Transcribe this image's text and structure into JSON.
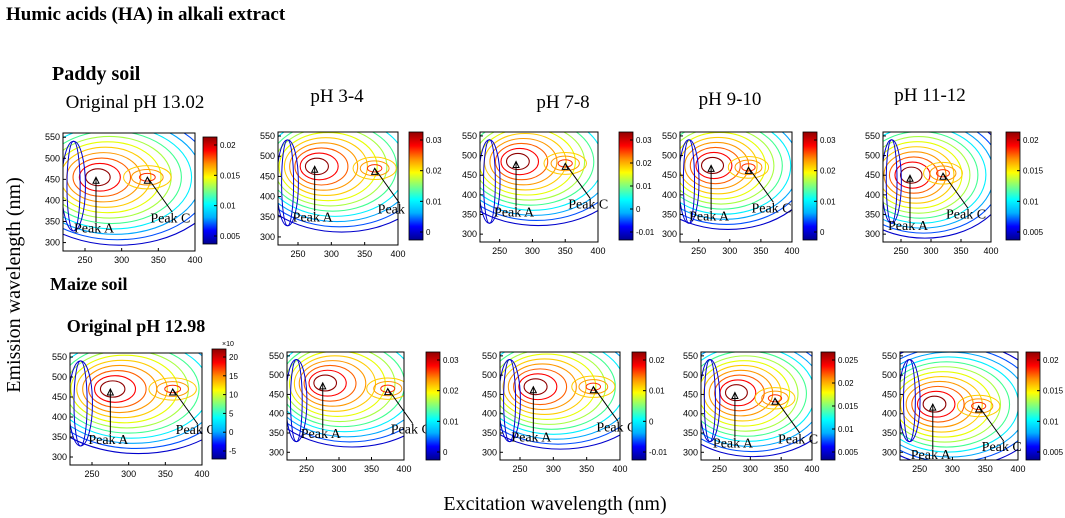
{
  "title": "Humic acids (HA) in alkali extract",
  "axis_labels": {
    "y": "Emission wavelength (nm)",
    "x": "Excitation wavelength (nm)"
  },
  "row_labels": {
    "paddy": "Paddy soil",
    "maize": "Maize soil"
  },
  "colormap": [
    "#00008f",
    "#0000ff",
    "#00b0ff",
    "#00ffff",
    "#7fff7f",
    "#ffff00",
    "#ff9000",
    "#ff0000",
    "#8f0000"
  ],
  "chart_data": [
    {
      "type": "heatmap",
      "soil": "Paddy soil",
      "title": "Original pH 13.02",
      "title_bold": false,
      "x_ticks": [
        250,
        300,
        350,
        400
      ],
      "y_ticks": [
        300,
        350,
        400,
        450,
        500,
        550
      ],
      "xlim": [
        220,
        400
      ],
      "ylim": [
        280,
        560
      ],
      "colorbar_ticks": [
        "0.02",
        "0.015",
        "0.01",
        "0.005"
      ],
      "colorbar_exponent": "",
      "peaks": [
        {
          "label": "Peak A",
          "ex": 265,
          "em": 455
        },
        {
          "label": "Peak C",
          "ex": 335,
          "em": 455
        }
      ]
    },
    {
      "type": "heatmap",
      "soil": "Paddy soil",
      "title": "pH 3-4",
      "title_bold": false,
      "x_ticks": [
        250,
        300,
        350,
        400
      ],
      "y_ticks": [
        300,
        350,
        400,
        450,
        500,
        550
      ],
      "xlim": [
        220,
        400
      ],
      "ylim": [
        280,
        560
      ],
      "colorbar_ticks": [
        "0.03",
        "0.02",
        "0.01",
        "0"
      ],
      "colorbar_exponent": "",
      "peaks": [
        {
          "label": "Peak A",
          "ex": 275,
          "em": 475
        },
        {
          "label": "Peak C",
          "ex": 365,
          "em": 470
        }
      ]
    },
    {
      "type": "heatmap",
      "soil": "Paddy soil",
      "title": "pH 7-8",
      "title_bold": false,
      "x_ticks": [
        250,
        300,
        350,
        400
      ],
      "y_ticks": [
        300,
        350,
        400,
        450,
        500,
        550
      ],
      "xlim": [
        220,
        400
      ],
      "ylim": [
        280,
        560
      ],
      "colorbar_ticks": [
        "0.03",
        "0.02",
        "0.01",
        "0",
        "-0.01"
      ],
      "colorbar_exponent": "",
      "peaks": [
        {
          "label": "Peak A",
          "ex": 275,
          "em": 485
        },
        {
          "label": "Peak C",
          "ex": 350,
          "em": 480
        }
      ]
    },
    {
      "type": "heatmap",
      "soil": "Paddy soil",
      "title": "pH 9-10",
      "title_bold": false,
      "x_ticks": [
        250,
        300,
        350,
        400
      ],
      "y_ticks": [
        300,
        350,
        400,
        450,
        500,
        550
      ],
      "xlim": [
        220,
        400
      ],
      "ylim": [
        280,
        560
      ],
      "colorbar_ticks": [
        "0.03",
        "0.02",
        "0.01",
        "0"
      ],
      "colorbar_exponent": "",
      "peaks": [
        {
          "label": "Peak A",
          "ex": 270,
          "em": 475
        },
        {
          "label": "Peak C",
          "ex": 330,
          "em": 470
        }
      ]
    },
    {
      "type": "heatmap",
      "soil": "Paddy soil",
      "title": "pH 11-12",
      "title_bold": false,
      "x_ticks": [
        250,
        300,
        350,
        400
      ],
      "y_ticks": [
        300,
        350,
        400,
        450,
        500,
        550
      ],
      "xlim": [
        220,
        400
      ],
      "ylim": [
        280,
        560
      ],
      "colorbar_ticks": [
        "0.02",
        "0.015",
        "0.01",
        "0.005"
      ],
      "colorbar_exponent": "",
      "peaks": [
        {
          "label": "Peak A",
          "ex": 265,
          "em": 450
        },
        {
          "label": "Peak C",
          "ex": 320,
          "em": 455
        }
      ]
    },
    {
      "type": "heatmap",
      "soil": "Maize soil",
      "title": "Original pH 12.98",
      "title_bold": true,
      "x_ticks": [
        250,
        300,
        350,
        400
      ],
      "y_ticks": [
        300,
        350,
        400,
        450,
        500,
        550
      ],
      "xlim": [
        220,
        400
      ],
      "ylim": [
        280,
        560
      ],
      "colorbar_ticks": [
        "20",
        "15",
        "10",
        "5",
        "0",
        "-5"
      ],
      "colorbar_exponent": "×10",
      "peaks": [
        {
          "label": "Peak A",
          "ex": 275,
          "em": 470
        },
        {
          "label": "Peak C",
          "ex": 360,
          "em": 470
        }
      ]
    },
    {
      "type": "heatmap",
      "soil": "Maize soil",
      "title": "",
      "title_bold": false,
      "x_ticks": [
        250,
        300,
        350,
        400
      ],
      "y_ticks": [
        300,
        350,
        400,
        450,
        500,
        550
      ],
      "xlim": [
        220,
        400
      ],
      "ylim": [
        280,
        560
      ],
      "colorbar_ticks": [
        "0.03",
        "0.02",
        "0.01",
        "0"
      ],
      "colorbar_exponent": "",
      "peaks": [
        {
          "label": "Peak A",
          "ex": 275,
          "em": 480
        },
        {
          "label": "Peak C",
          "ex": 375,
          "em": 465
        }
      ]
    },
    {
      "type": "heatmap",
      "soil": "Maize soil",
      "title": "",
      "title_bold": false,
      "x_ticks": [
        250,
        300,
        350,
        400
      ],
      "y_ticks": [
        300,
        350,
        400,
        450,
        500,
        550
      ],
      "xlim": [
        220,
        400
      ],
      "ylim": [
        280,
        560
      ],
      "colorbar_ticks": [
        "0.02",
        "0.01",
        "0",
        "-0.01"
      ],
      "colorbar_exponent": "",
      "peaks": [
        {
          "label": "Peak A",
          "ex": 270,
          "em": 470
        },
        {
          "label": "Peak C",
          "ex": 360,
          "em": 470
        }
      ]
    },
    {
      "type": "heatmap",
      "soil": "Maize soil",
      "title": "",
      "title_bold": false,
      "x_ticks": [
        250,
        300,
        350,
        400
      ],
      "y_ticks": [
        300,
        350,
        400,
        450,
        500,
        550
      ],
      "xlim": [
        220,
        400
      ],
      "ylim": [
        280,
        560
      ],
      "colorbar_ticks": [
        "0.025",
        "0.02",
        "0.015",
        "0.01",
        "0.005"
      ],
      "colorbar_exponent": "",
      "peaks": [
        {
          "label": "Peak A",
          "ex": 275,
          "em": 455
        },
        {
          "label": "Peak C",
          "ex": 340,
          "em": 440
        }
      ]
    },
    {
      "type": "heatmap",
      "soil": "Maize soil",
      "title": "",
      "title_bold": false,
      "x_ticks": [
        250,
        300,
        350,
        400
      ],
      "y_ticks": [
        300,
        350,
        400,
        450,
        500,
        550
      ],
      "xlim": [
        220,
        400
      ],
      "ylim": [
        280,
        560
      ],
      "colorbar_ticks": [
        "0.02",
        "0.015",
        "0.01",
        "0.005"
      ],
      "colorbar_exponent": "",
      "peaks": [
        {
          "label": "Peak A",
          "ex": 270,
          "em": 425
        },
        {
          "label": "Peak C",
          "ex": 340,
          "em": 420
        }
      ]
    }
  ]
}
